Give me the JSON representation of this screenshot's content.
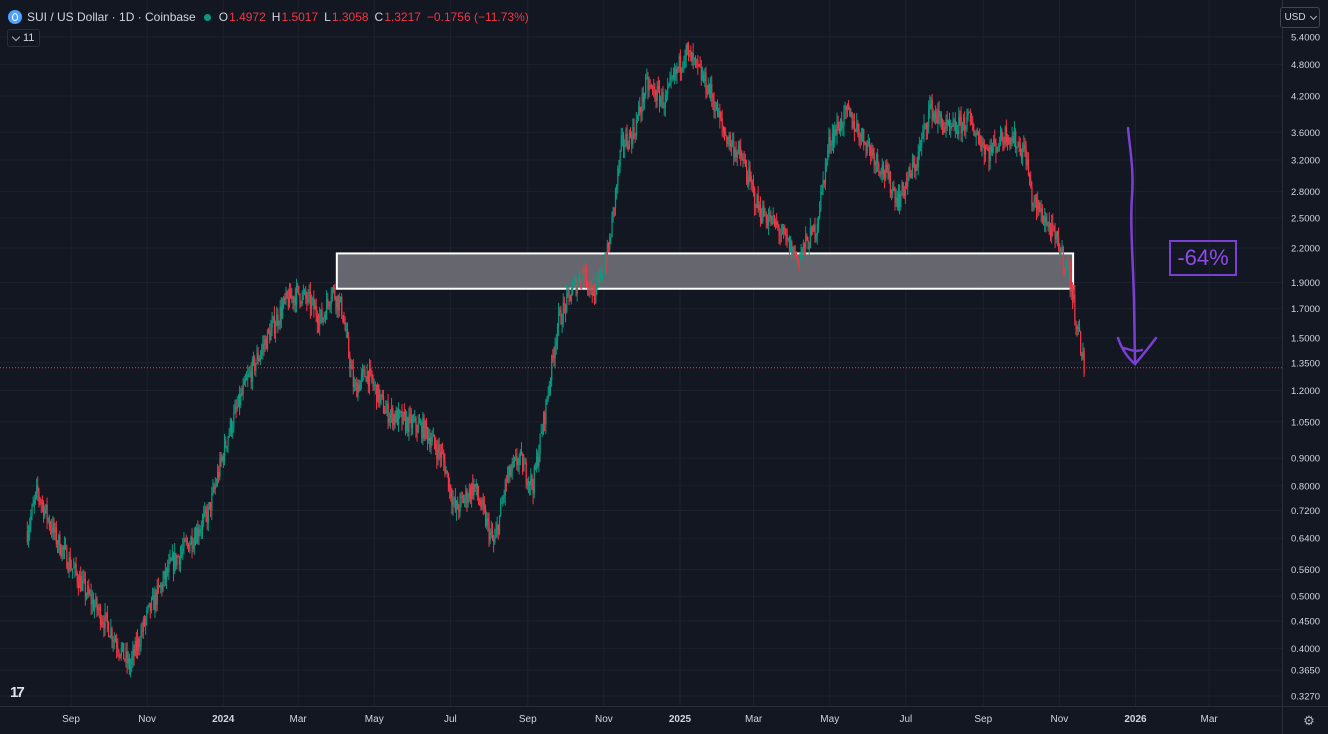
{
  "legend": {
    "title": "SUI / US Dollar · 1D · Coinbase",
    "open_key": "O",
    "open": "1.4972",
    "high_key": "H",
    "high": "1.5017",
    "low_key": "L",
    "low": "1.3058",
    "close_key": "C",
    "close": "1.3217",
    "change": "−0.1756 (−11.73%)",
    "indicator_count": "11",
    "symbol_icon": "sui-droplet-icon",
    "status_icon": "market-status-dot"
  },
  "currency": "USD",
  "drop_annotation": "-64%",
  "colors": {
    "background": "#131722",
    "up": "#089981",
    "down": "#f23645",
    "annotation": "#7b3fd1",
    "zone_fill": "#6a6c73",
    "zone_border": "#ffffff"
  },
  "chart_data": {
    "type": "candlestick",
    "y_scale": "log",
    "y_ticks": [
      "5.4000",
      "4.8000",
      "4.2000",
      "3.6000",
      "3.2000",
      "2.8000",
      "2.5000",
      "2.2000",
      "1.9000",
      "1.7000",
      "1.5000",
      "1.3500",
      "1.2000",
      "1.0500",
      "0.9000",
      "0.8000",
      "0.7200",
      "0.6400",
      "0.5600",
      "0.5000",
      "0.4500",
      "0.4000",
      "0.3650",
      "0.3270"
    ],
    "x_ticks": [
      {
        "label": "Sep",
        "bold": false
      },
      {
        "label": "Nov",
        "bold": false
      },
      {
        "label": "2024",
        "bold": true
      },
      {
        "label": "Mar",
        "bold": false
      },
      {
        "label": "May",
        "bold": false
      },
      {
        "label": "Jul",
        "bold": false
      },
      {
        "label": "Sep",
        "bold": false
      },
      {
        "label": "Nov",
        "bold": false
      },
      {
        "label": "2025",
        "bold": true
      },
      {
        "label": "Mar",
        "bold": false
      },
      {
        "label": "May",
        "bold": false
      },
      {
        "label": "Jul",
        "bold": false
      },
      {
        "label": "Sep",
        "bold": false
      },
      {
        "label": "Nov",
        "bold": false
      },
      {
        "label": "2026",
        "bold": true
      },
      {
        "label": "Mar",
        "bold": false
      }
    ],
    "price_line": 1.3217,
    "support_zone": {
      "from": "2024-04-01",
      "to": "2025-11-12",
      "low": 1.85,
      "high": 2.15
    },
    "price_path": [
      [
        "2023-07-28",
        0.66
      ],
      [
        "2023-08-05",
        0.78
      ],
      [
        "2023-08-20",
        0.64
      ],
      [
        "2023-09-01",
        0.57
      ],
      [
        "2023-09-15",
        0.5
      ],
      [
        "2023-10-01",
        0.44
      ],
      [
        "2023-10-18",
        0.37
      ],
      [
        "2023-11-01",
        0.46
      ],
      [
        "2023-11-20",
        0.57
      ],
      [
        "2023-12-05",
        0.63
      ],
      [
        "2023-12-20",
        0.71
      ],
      [
        "2024-01-05",
        1.0
      ],
      [
        "2024-01-20",
        1.25
      ],
      [
        "2024-02-05",
        1.5
      ],
      [
        "2024-02-20",
        1.75
      ],
      [
        "2024-03-01",
        1.82
      ],
      [
        "2024-03-10",
        1.75
      ],
      [
        "2024-03-20",
        1.62
      ],
      [
        "2024-03-28",
        1.85
      ],
      [
        "2024-04-05",
        1.7
      ],
      [
        "2024-04-15",
        1.2
      ],
      [
        "2024-04-25",
        1.3
      ],
      [
        "2024-05-10",
        1.1
      ],
      [
        "2024-05-25",
        1.05
      ],
      [
        "2024-06-10",
        1.02
      ],
      [
        "2024-06-25",
        0.9
      ],
      [
        "2024-07-05",
        0.72
      ],
      [
        "2024-07-20",
        0.8
      ],
      [
        "2024-08-05",
        0.62
      ],
      [
        "2024-08-15",
        0.82
      ],
      [
        "2024-08-25",
        0.9
      ],
      [
        "2024-09-05",
        0.8
      ],
      [
        "2024-09-15",
        1.1
      ],
      [
        "2024-09-25",
        1.6
      ],
      [
        "2024-10-05",
        1.8
      ],
      [
        "2024-10-15",
        2.0
      ],
      [
        "2024-10-25",
        1.8
      ],
      [
        "2024-11-05",
        2.2
      ],
      [
        "2024-11-15",
        3.4
      ],
      [
        "2024-11-25",
        3.6
      ],
      [
        "2024-12-05",
        4.4
      ],
      [
        "2024-12-20",
        4.1
      ],
      [
        "2025-01-05",
        5.1
      ],
      [
        "2025-01-15",
        4.7
      ],
      [
        "2025-01-25",
        4.3
      ],
      [
        "2025-02-05",
        3.6
      ],
      [
        "2025-02-20",
        3.2
      ],
      [
        "2025-03-05",
        2.6
      ],
      [
        "2025-03-20",
        2.4
      ],
      [
        "2025-04-05",
        2.1
      ],
      [
        "2025-04-20",
        2.4
      ],
      [
        "2025-05-01",
        3.5
      ],
      [
        "2025-05-15",
        3.9
      ],
      [
        "2025-06-01",
        3.4
      ],
      [
        "2025-06-15",
        3.0
      ],
      [
        "2025-06-25",
        2.7
      ],
      [
        "2025-07-10",
        3.2
      ],
      [
        "2025-07-20",
        4.0
      ],
      [
        "2025-08-05",
        3.6
      ],
      [
        "2025-08-20",
        3.8
      ],
      [
        "2025-09-05",
        3.3
      ],
      [
        "2025-09-20",
        3.6
      ],
      [
        "2025-10-05",
        3.3
      ],
      [
        "2025-10-10",
        2.7
      ],
      [
        "2025-10-20",
        2.5
      ],
      [
        "2025-11-01",
        2.2
      ],
      [
        "2025-11-08",
        2.0
      ],
      [
        "2025-11-15",
        1.6
      ],
      [
        "2025-11-21",
        1.32
      ]
    ]
  }
}
